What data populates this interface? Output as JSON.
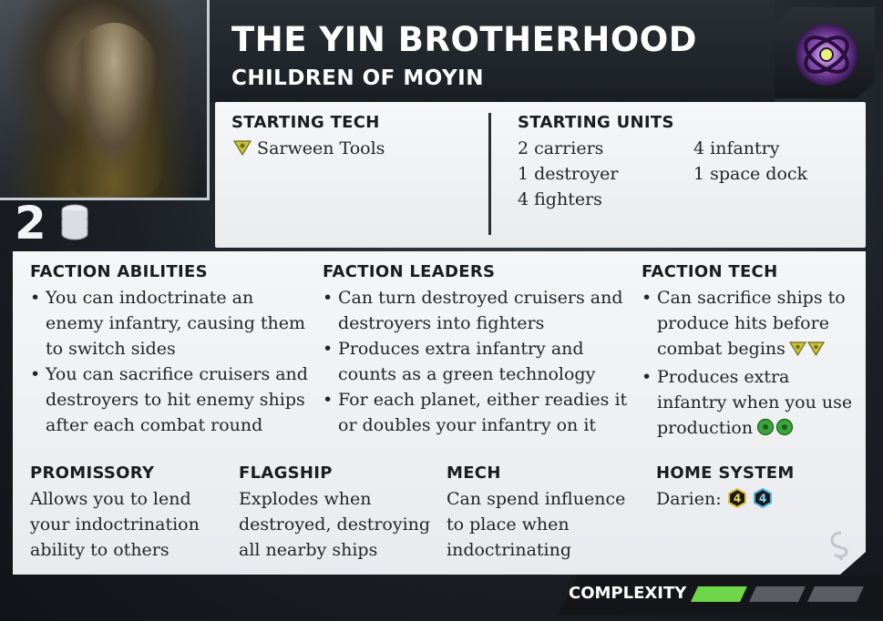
{
  "faction": {
    "name": "THE YIN BROTHERHOOD",
    "subtitle": "CHILDREN OF MOYIN",
    "commodities": "2"
  },
  "starting_tech": {
    "heading": "STARTING TECH",
    "items": [
      "Sarween Tools"
    ]
  },
  "starting_units": {
    "heading": "STARTING UNITS",
    "col1": [
      "2 carriers",
      "1 destroyer",
      "4 fighters"
    ],
    "col2": [
      "4 infantry",
      "1 space dock"
    ]
  },
  "faction_abilities": {
    "heading": "FACTION ABILITIES",
    "items": [
      [
        "You can indoctrinate an",
        "enemy infantry, causing them",
        "to switch sides"
      ],
      [
        "You can sacrifice cruisers and",
        "destroyers to hit enemy ships",
        "after each combat round"
      ]
    ]
  },
  "faction_leaders": {
    "heading": "FACTION LEADERS",
    "items": [
      [
        "Can turn destroyed cruisers and",
        "destroyers into fighters"
      ],
      [
        "Produces extra infantry and",
        "counts as a green technology"
      ],
      [
        "For each planet, either readies it",
        "or doubles your infantry on it"
      ]
    ]
  },
  "faction_tech": {
    "heading": "FACTION TECH",
    "items": [
      [
        "Can sacrifice ships to",
        "produce hits before",
        "combat begins"
      ],
      [
        "Produces extra",
        "infantry when you use",
        "production"
      ]
    ]
  },
  "promissory": {
    "heading": "PROMISSORY",
    "lines": [
      "Allows you to lend",
      "your indoctrination",
      "ability to others"
    ]
  },
  "flagship": {
    "heading": "FLAGSHIP",
    "lines": [
      "Explodes when",
      "destroyed, destroying",
      "all nearby ships"
    ]
  },
  "mech": {
    "heading": "MECH",
    "lines": [
      "Can spend influence",
      "to place when",
      "indoctrinating"
    ]
  },
  "home_system": {
    "heading": "HOME SYSTEM",
    "planet": "Darien:",
    "resources": "4",
    "influence": "4"
  },
  "complexity": {
    "label": "COMPLEXITY",
    "level": 1,
    "max": 3
  },
  "colors": {
    "yellow_tech": "#c9c23a",
    "green_tech": "#3aa53a",
    "complexity_on": "#6fd64a",
    "complexity_off": "#5a5d62"
  },
  "icons": {
    "faction": "yin-brotherhood-symbol-icon",
    "commodity": "commodity-stack-icon",
    "yellow_tech": "cybernetic-tech-icon",
    "green_tech": "biotic-tech-icon"
  }
}
